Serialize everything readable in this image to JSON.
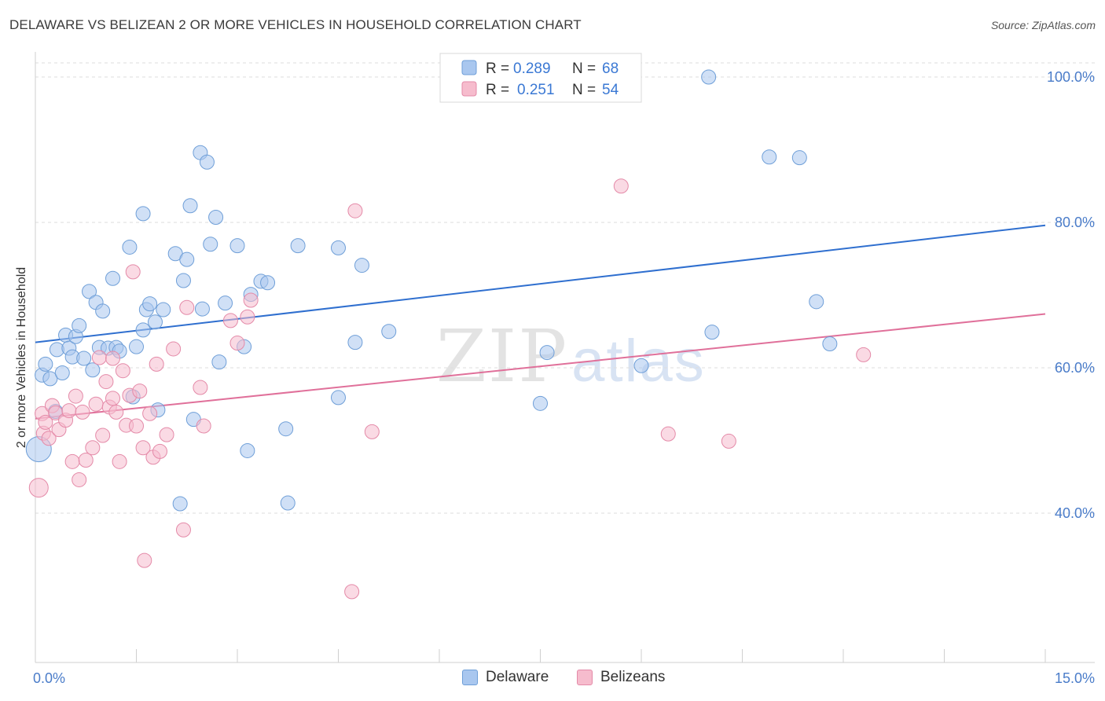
{
  "title": "DELAWARE VS BELIZEAN 2 OR MORE VEHICLES IN HOUSEHOLD CORRELATION CHART",
  "source": "Source: ZipAtlas.com",
  "watermark": {
    "zip": "ZIP",
    "atlas": "atlas"
  },
  "legend_top": [
    {
      "r_label": "R =",
      "r_value": "0.289",
      "n_label": "N =",
      "n_value": "68",
      "color": "#a9c7ef",
      "stroke": "#6f9fd8"
    },
    {
      "r_label": "R =",
      "r_value": "0.251",
      "n_label": "N =",
      "n_value": "54",
      "color": "#f6bccd",
      "stroke": "#e48aa8"
    }
  ],
  "legend_bottom": [
    {
      "label": "Delaware",
      "color": "#a9c7ef",
      "stroke": "#6f9fd8"
    },
    {
      "label": "Belizeans",
      "color": "#f6bccd",
      "stroke": "#e48aa8"
    }
  ],
  "chart_data": {
    "type": "scatter",
    "title": "DELAWARE VS BELIZEAN 2 OR MORE VEHICLES IN HOUSEHOLD CORRELATION CHART",
    "xlabel": "",
    "ylabel": "2 or more Vehicles in Household",
    "xlim": [
      0,
      15
    ],
    "ylim": [
      20,
      102
    ],
    "x_tick_labels": [
      "0.0%",
      "15.0%"
    ],
    "y_ticks": [
      40,
      60,
      80,
      100
    ],
    "y_tick_labels": [
      "40.0%",
      "60.0%",
      "80.0%",
      "100.0%"
    ],
    "grid": true,
    "legend_placement": "top-center",
    "series": [
      {
        "name": "Delaware",
        "color": "#6f9fd8",
        "trend": {
          "x": [
            0,
            15
          ],
          "y": [
            63.5,
            79.6
          ],
          "color": "#2f6fcf"
        },
        "points": [
          [
            0.05,
            48.8,
            16
          ],
          [
            0.1,
            59.0,
            9
          ],
          [
            0.15,
            60.5,
            9
          ],
          [
            0.22,
            58.5,
            9
          ],
          [
            0.3,
            54.0,
            9
          ],
          [
            0.32,
            62.5,
            9
          ],
          [
            0.4,
            59.3,
            9
          ],
          [
            0.45,
            64.5,
            9
          ],
          [
            0.5,
            62.7,
            9
          ],
          [
            0.55,
            61.5,
            9
          ],
          [
            0.6,
            64.3,
            9
          ],
          [
            0.65,
            65.8,
            9
          ],
          [
            0.72,
            61.3,
            9
          ],
          [
            0.8,
            70.5,
            9
          ],
          [
            0.85,
            59.7,
            9
          ],
          [
            0.9,
            69.0,
            9
          ],
          [
            0.95,
            62.8,
            9
          ],
          [
            1.0,
            67.8,
            9
          ],
          [
            1.08,
            62.7,
            9
          ],
          [
            1.15,
            72.3,
            9
          ],
          [
            1.2,
            62.8,
            9
          ],
          [
            1.25,
            62.3,
            9
          ],
          [
            1.4,
            76.6,
            9
          ],
          [
            1.45,
            56.0,
            9
          ],
          [
            1.5,
            62.9,
            9
          ],
          [
            1.6,
            81.2,
            9
          ],
          [
            1.6,
            65.2,
            9
          ],
          [
            1.65,
            68.0,
            9
          ],
          [
            1.7,
            68.8,
            9
          ],
          [
            1.78,
            66.3,
            9
          ],
          [
            1.82,
            54.2,
            9
          ],
          [
            1.9,
            68.0,
            9
          ],
          [
            2.08,
            75.7,
            9
          ],
          [
            2.15,
            41.3,
            9
          ],
          [
            2.2,
            72.0,
            9
          ],
          [
            2.25,
            74.9,
            9
          ],
          [
            2.3,
            82.3,
            9
          ],
          [
            2.35,
            52.9,
            9
          ],
          [
            2.45,
            89.6,
            9
          ],
          [
            2.48,
            68.1,
            9
          ],
          [
            2.55,
            88.3,
            9
          ],
          [
            2.6,
            77.0,
            9
          ],
          [
            2.68,
            80.7,
            9
          ],
          [
            2.73,
            60.8,
            9
          ],
          [
            2.82,
            68.9,
            9
          ],
          [
            3.0,
            76.8,
            9
          ],
          [
            3.1,
            62.9,
            9
          ],
          [
            3.15,
            48.6,
            9
          ],
          [
            3.2,
            70.1,
            9
          ],
          [
            3.35,
            71.9,
            9
          ],
          [
            3.45,
            71.7,
            9
          ],
          [
            3.72,
            51.6,
            9
          ],
          [
            3.75,
            41.4,
            9
          ],
          [
            3.9,
            76.8,
            9
          ],
          [
            4.5,
            76.5,
            9
          ],
          [
            4.5,
            55.9,
            9
          ],
          [
            4.75,
            63.5,
            9
          ],
          [
            4.85,
            74.1,
            9
          ],
          [
            5.25,
            65.0,
            9
          ],
          [
            7.5,
            55.1,
            9
          ],
          [
            7.6,
            62.1,
            9
          ],
          [
            9.0,
            60.3,
            9
          ],
          [
            10.0,
            100.0,
            9
          ],
          [
            10.05,
            64.9,
            9
          ],
          [
            10.9,
            89.0,
            9
          ],
          [
            11.35,
            88.9,
            9
          ],
          [
            11.6,
            69.1,
            9
          ],
          [
            11.8,
            63.3,
            9
          ]
        ]
      },
      {
        "name": "Belizeans",
        "color": "#e48aa8",
        "trend": {
          "x": [
            0,
            15
          ],
          "y": [
            53.0,
            67.4
          ],
          "color": "#e0709a"
        },
        "points": [
          [
            0.05,
            43.5,
            12
          ],
          [
            0.1,
            53.7,
            9
          ],
          [
            0.12,
            51.0,
            9
          ],
          [
            0.15,
            52.5,
            9
          ],
          [
            0.2,
            50.3,
            9
          ],
          [
            0.25,
            54.8,
            9
          ],
          [
            0.3,
            53.8,
            9
          ],
          [
            0.35,
            51.5,
            9
          ],
          [
            0.45,
            52.8,
            9
          ],
          [
            0.5,
            54.1,
            9
          ],
          [
            0.55,
            47.1,
            9
          ],
          [
            0.6,
            56.1,
            9
          ],
          [
            0.65,
            44.6,
            9
          ],
          [
            0.7,
            53.9,
            9
          ],
          [
            0.75,
            47.3,
            9
          ],
          [
            0.85,
            49.0,
            9
          ],
          [
            0.9,
            55.0,
            9
          ],
          [
            0.95,
            61.4,
            9
          ],
          [
            1.0,
            50.7,
            9
          ],
          [
            1.05,
            58.1,
            9
          ],
          [
            1.1,
            54.6,
            9
          ],
          [
            1.15,
            55.8,
            9
          ],
          [
            1.2,
            53.9,
            9
          ],
          [
            1.25,
            47.1,
            9
          ],
          [
            1.3,
            59.6,
            9
          ],
          [
            1.35,
            52.1,
            9
          ],
          [
            1.4,
            56.2,
            9
          ],
          [
            1.45,
            73.2,
            9
          ],
          [
            1.5,
            52.0,
            9
          ],
          [
            1.55,
            56.8,
            9
          ],
          [
            1.6,
            49.0,
            9
          ],
          [
            1.62,
            33.5,
            9
          ],
          [
            1.7,
            53.7,
            9
          ],
          [
            1.75,
            47.7,
            9
          ],
          [
            1.8,
            60.5,
            9
          ],
          [
            1.85,
            48.5,
            9
          ],
          [
            1.95,
            50.8,
            9
          ],
          [
            2.05,
            62.6,
            9
          ],
          [
            2.2,
            37.7,
            9
          ],
          [
            2.25,
            68.3,
            9
          ],
          [
            2.45,
            57.3,
            9
          ],
          [
            2.5,
            52.0,
            9
          ],
          [
            2.9,
            66.5,
            9
          ],
          [
            3.0,
            63.4,
            9
          ],
          [
            3.15,
            67.0,
            9
          ],
          [
            3.2,
            69.3,
            9
          ],
          [
            4.7,
            29.2,
            9
          ],
          [
            4.75,
            81.6,
            9
          ],
          [
            5.0,
            51.2,
            9
          ],
          [
            8.7,
            85.0,
            9
          ],
          [
            9.4,
            50.9,
            9
          ],
          [
            10.3,
            49.9,
            9
          ],
          [
            12.3,
            61.8,
            9
          ],
          [
            1.15,
            61.3,
            9
          ]
        ]
      }
    ]
  }
}
